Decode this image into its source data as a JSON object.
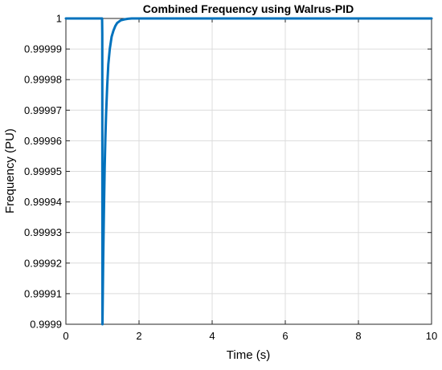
{
  "chart_data": {
    "type": "line",
    "title": "Combined Frequency using Walrus-PID",
    "xlabel": "Time (s)",
    "ylabel": "Frequency (PU)",
    "xlim": [
      0,
      10
    ],
    "ylim": [
      0.9999,
      1.0
    ],
    "grid": true,
    "x_ticks": [
      0,
      2,
      4,
      6,
      8,
      10
    ],
    "x_tick_labels": [
      "0",
      "2",
      "4",
      "6",
      "8",
      "10"
    ],
    "y_ticks": [
      0.9999,
      0.99991,
      0.99992,
      0.99993,
      0.99994,
      0.99995,
      0.99996,
      0.99997,
      0.99998,
      0.99999,
      1.0
    ],
    "y_tick_labels": [
      "0.9999",
      "0.99991",
      "0.99992",
      "0.99993",
      "0.99994",
      "0.99995",
      "0.99996",
      "0.99997",
      "0.99998",
      "0.99999",
      "1"
    ],
    "series": [
      {
        "color": "#0072BD",
        "x": [
          0,
          0.99,
          0.995,
          1.0,
          1.02,
          1.04,
          1.06,
          1.08,
          1.1,
          1.13,
          1.16,
          1.2,
          1.25,
          1.3,
          1.35,
          1.4,
          1.5,
          1.6,
          1.7,
          1.8,
          2.0,
          2.5,
          3,
          4,
          5,
          6,
          7,
          8,
          9,
          10
        ],
        "y": [
          1.0,
          1.0,
          0.999995,
          0.9999,
          0.999921,
          0.999937,
          0.999951,
          0.999961,
          0.999969,
          0.999978,
          0.999985,
          0.99999,
          0.999994,
          0.999996,
          0.9999975,
          0.9999985,
          0.9999994,
          0.9999997,
          0.9999999,
          1.0,
          1.0,
          1.0,
          1.0,
          1.0,
          1.0,
          1.0,
          1.0,
          1.0,
          1.0,
          1.0
        ]
      }
    ]
  }
}
